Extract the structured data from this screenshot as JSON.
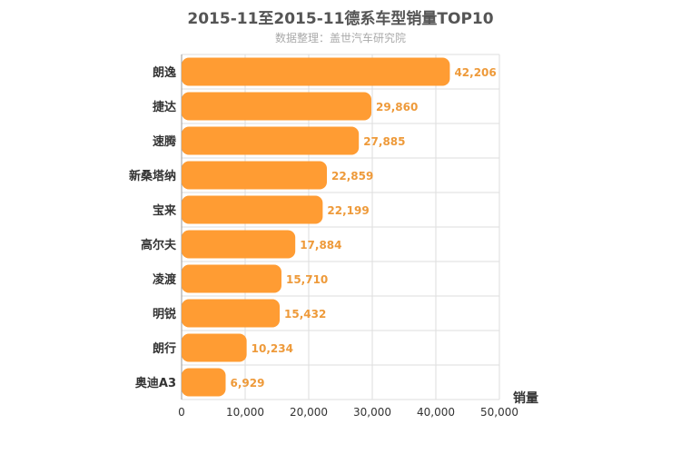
{
  "chart_data": {
    "type": "bar",
    "orientation": "horizontal",
    "title": "2015-11至2015-11德系车型销量TOP10",
    "subtitle": "数据整理：盖世汽车研究院",
    "categories": [
      "朗逸",
      "捷达",
      "速腾",
      "新桑塔纳",
      "宝来",
      "高尔夫",
      "凌渡",
      "明锐",
      "朗行",
      "奥迪A3"
    ],
    "values": [
      42206,
      29860,
      27885,
      22859,
      22199,
      17884,
      15710,
      15432,
      10234,
      6929
    ],
    "value_labels": [
      "42,206",
      "29,860",
      "27,885",
      "22,859",
      "22,199",
      "17,884",
      "15,710",
      "15,432",
      "10,234",
      "6,929"
    ],
    "xlabel": "销量",
    "ylabel": "",
    "xlim": [
      0,
      50000
    ],
    "ticks": [
      0,
      10000,
      20000,
      30000,
      40000,
      50000
    ],
    "tick_labels": [
      "0",
      "10,000",
      "20,000",
      "30,000",
      "40,000",
      "50,000"
    ],
    "grid": true,
    "bar_color": "#ff9c33",
    "label_color": "#ee9a3a"
  }
}
